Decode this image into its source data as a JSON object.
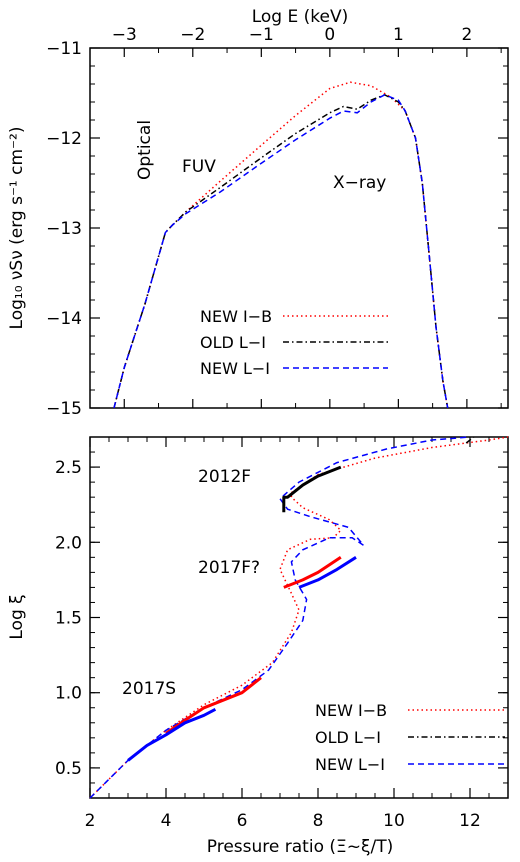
{
  "chart_data": [
    {
      "type": "line",
      "top_xlabel": "Log E (keV)",
      "top_xticks": [
        "−3",
        "−2",
        "−1",
        "0",
        "1",
        "2"
      ],
      "top_xlim": [
        -3.5,
        2.6
      ],
      "ylabel": "Log₁₀ νSν (erg s⁻¹ cm⁻²)",
      "yticks": [
        "−11",
        "−12",
        "−13",
        "−14",
        "−15"
      ],
      "ylim": [
        -15,
        -11
      ],
      "annotations": [
        "Optical",
        "FUV",
        "X−ray"
      ],
      "legend": [
        "NEW I−B",
        "OLD L−I",
        "NEW L−I"
      ],
      "series": [
        {
          "name": "NEW I−B",
          "color": "#ff0000",
          "style": "dotted",
          "x": [
            -3.15,
            -3.0,
            -2.85,
            -2.7,
            -2.55,
            -2.4,
            -2.3,
            -2.1,
            -1.6,
            -1.0,
            -0.5,
            0.0,
            0.3,
            0.6,
            0.9,
            1.1,
            1.25,
            1.35,
            1.45,
            1.55,
            1.65,
            1.72
          ],
          "y": [
            -15.0,
            -14.55,
            -14.2,
            -13.85,
            -13.45,
            -13.05,
            -12.97,
            -12.82,
            -12.48,
            -12.08,
            -11.75,
            -11.45,
            -11.38,
            -11.42,
            -11.55,
            -11.7,
            -12.0,
            -12.5,
            -13.3,
            -14.1,
            -14.7,
            -15.0
          ]
        },
        {
          "name": "OLD L−I",
          "color": "#000000",
          "style": "dashdot",
          "x": [
            -3.15,
            -3.0,
            -2.85,
            -2.7,
            -2.55,
            -2.4,
            -2.3,
            -2.1,
            -1.6,
            -1.0,
            -0.5,
            0.0,
            0.2,
            0.4,
            0.6,
            0.8,
            1.0,
            1.1,
            1.25,
            1.35,
            1.45,
            1.55,
            1.65,
            1.72
          ],
          "y": [
            -15.0,
            -14.55,
            -14.2,
            -13.85,
            -13.45,
            -13.05,
            -12.97,
            -12.82,
            -12.55,
            -12.22,
            -11.95,
            -11.72,
            -11.65,
            -11.68,
            -11.58,
            -11.52,
            -11.6,
            -11.7,
            -12.0,
            -12.5,
            -13.3,
            -14.1,
            -14.7,
            -15.0
          ]
        },
        {
          "name": "NEW L−I",
          "color": "#0000ff",
          "style": "dashed",
          "x": [
            -3.15,
            -3.0,
            -2.85,
            -2.7,
            -2.55,
            -2.4,
            -2.3,
            -2.1,
            -1.6,
            -1.0,
            -0.5,
            0.0,
            0.2,
            0.4,
            0.6,
            0.8,
            1.0,
            1.1,
            1.25,
            1.35,
            1.45,
            1.55,
            1.65,
            1.72
          ],
          "y": [
            -15.0,
            -14.55,
            -14.2,
            -13.85,
            -13.45,
            -13.05,
            -12.97,
            -12.84,
            -12.6,
            -12.28,
            -12.02,
            -11.78,
            -11.7,
            -11.72,
            -11.6,
            -11.52,
            -11.58,
            -11.7,
            -12.0,
            -12.5,
            -13.3,
            -14.1,
            -14.7,
            -15.0
          ]
        }
      ]
    },
    {
      "type": "line",
      "xlabel": "Pressure ratio (Ξ~ξ/T)",
      "ylabel": "Log ξ",
      "xticks": [
        "2",
        "4",
        "6",
        "8",
        "10",
        "12"
      ],
      "yticks": [
        "0.5",
        "1.0",
        "1.5",
        "2.0",
        "2.5"
      ],
      "xlim": [
        2,
        13
      ],
      "ylim": [
        0.3,
        2.7
      ],
      "annotations": [
        "2012F",
        "2017F?",
        "2017S"
      ],
      "legend": [
        "NEW I−B",
        "OLD L−I",
        "NEW L−I"
      ],
      "series": [
        {
          "name": "NEW I−B",
          "color": "#ff0000",
          "style": "dotted",
          "x": [
            2.0,
            3.0,
            4.0,
            5.0,
            6.0,
            6.8,
            7.3,
            7.5,
            7.3,
            7.0,
            7.2,
            7.8,
            8.4,
            8.6,
            8.3,
            7.6,
            7.3,
            7.3,
            8.0,
            9.5,
            11.0,
            12.5,
            13.0
          ],
          "y": [
            0.3,
            0.55,
            0.75,
            0.92,
            1.05,
            1.2,
            1.4,
            1.55,
            1.66,
            1.82,
            1.95,
            2.02,
            2.03,
            2.08,
            2.15,
            2.23,
            2.3,
            2.33,
            2.45,
            2.56,
            2.63,
            2.68,
            2.7
          ]
        },
        {
          "name": "OLD L−I",
          "color": "#000000",
          "style": "dashdot",
          "x": [
            11.9,
            12.1
          ],
          "y": [
            2.66,
            2.7
          ]
        },
        {
          "name": "NEW L−I",
          "color": "#0000ff",
          "style": "dashed",
          "x": [
            2.0,
            3.0,
            4.0,
            5.0,
            6.0,
            6.7,
            7.2,
            7.6,
            7.7,
            7.4,
            7.3,
            7.6,
            8.3,
            8.9,
            9.2,
            8.8,
            7.8,
            7.2,
            7.0,
            7.5,
            8.5,
            9.8,
            11.0,
            12.0
          ],
          "y": [
            0.3,
            0.55,
            0.75,
            0.9,
            1.02,
            1.15,
            1.33,
            1.48,
            1.62,
            1.75,
            1.87,
            1.95,
            2.03,
            2.03,
            1.98,
            2.1,
            2.17,
            2.22,
            2.29,
            2.4,
            2.53,
            2.62,
            2.68,
            2.7
          ]
        }
      ],
      "segments": [
        {
          "color": "#000000",
          "x": [
            7.1,
            7.1,
            7.2,
            7.6,
            8.0,
            8.6
          ],
          "y": [
            2.2,
            2.3,
            2.3,
            2.38,
            2.44,
            2.5
          ]
        },
        {
          "color": "#ff0000",
          "x": [
            7.1,
            7.6,
            8.0,
            8.6
          ],
          "y": [
            1.7,
            1.75,
            1.8,
            1.9
          ]
        },
        {
          "color": "#0000ff",
          "x": [
            7.5,
            8.0,
            8.5,
            9.0
          ],
          "y": [
            1.7,
            1.75,
            1.82,
            1.9
          ]
        },
        {
          "color": "#ff0000",
          "x": [
            4.0,
            4.4,
            5.0,
            6.0,
            6.5
          ],
          "y": [
            0.73,
            0.8,
            0.9,
            1.0,
            1.1
          ]
        },
        {
          "color": "#0000ff",
          "x": [
            3.0,
            3.5,
            4.0,
            4.5,
            5.0,
            5.3
          ],
          "y": [
            0.55,
            0.65,
            0.72,
            0.8,
            0.85,
            0.89
          ]
        }
      ]
    }
  ]
}
